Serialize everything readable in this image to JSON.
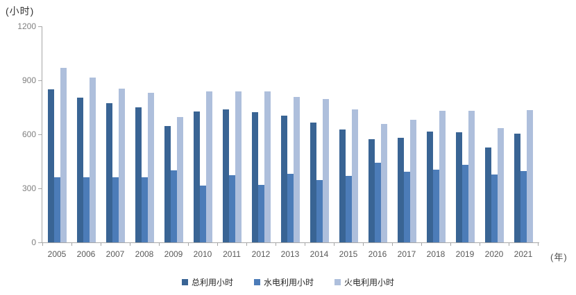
{
  "chart": {
    "unit_label": "(小时)",
    "x_unit_label": "(年)",
    "y_axis": {
      "min": 0,
      "max": 1200,
      "ticks": [
        0,
        300,
        600,
        900,
        1200
      ]
    }
  },
  "chart_data": {
    "type": "bar",
    "title": "",
    "xlabel": "年",
    "ylabel": "小时",
    "ylim": [
      0,
      1200
    ],
    "grid": false,
    "legend_position": "bottom",
    "categories": [
      "2005",
      "2006",
      "2007",
      "2008",
      "2009",
      "2010",
      "2011",
      "2012",
      "2013",
      "2014",
      "2015",
      "2016",
      "2017",
      "2018",
      "2019",
      "2020",
      "2021"
    ],
    "series": [
      {
        "name": "总利用小时",
        "color": "#396494",
        "values": [
          850,
          805,
          775,
          750,
          645,
          728,
          738,
          722,
          705,
          666,
          628,
          574,
          580,
          615,
          612,
          528,
          602
        ]
      },
      {
        "name": "水电利用小时",
        "color": "#4c7cb8",
        "values": [
          360,
          360,
          360,
          360,
          400,
          315,
          372,
          318,
          382,
          345,
          370,
          442,
          394,
          405,
          430,
          376,
          396
        ]
      },
      {
        "name": "火电利用小时",
        "color": "#aebfdc",
        "values": [
          970,
          915,
          855,
          830,
          695,
          838,
          840,
          840,
          808,
          795,
          740,
          656,
          682,
          730,
          732,
          635,
          733
        ]
      }
    ]
  }
}
